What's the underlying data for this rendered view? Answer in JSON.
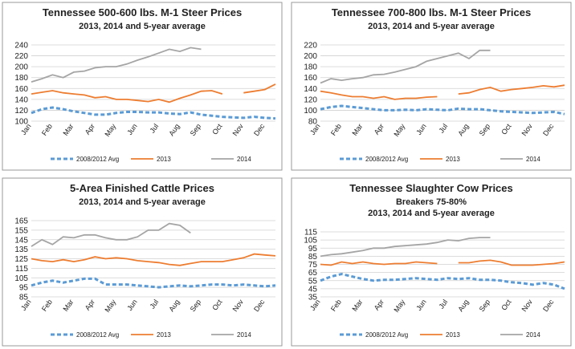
{
  "chart_data": [
    {
      "type": "line",
      "title": "Tennessee 500-600 lbs. M-1 Steer Prices",
      "subtitles": [
        "2013, 2014 and 5-year average"
      ],
      "categories": [
        "Jan",
        null,
        "Feb",
        null,
        "Mar",
        null,
        "Apr",
        null,
        "May",
        null,
        "Jun",
        null,
        "Jul",
        null,
        "Aug",
        null,
        "Sep",
        null,
        "Oct",
        null,
        "Nov",
        null,
        "Dec",
        null
      ],
      "ylim": [
        100,
        240
      ],
      "yticks": [
        100,
        120,
        140,
        160,
        180,
        200,
        220,
        240
      ],
      "grid": true,
      "series": [
        {
          "name": "2008/2012 Avg",
          "color": "#5b9bd5",
          "dashed": true,
          "values": [
            115,
            122,
            125,
            122,
            118,
            115,
            112,
            112,
            115,
            117,
            117,
            116,
            116,
            114,
            113,
            116,
            112,
            110,
            108,
            107,
            106,
            108,
            106,
            105
          ]
        },
        {
          "name": "2013",
          "color": "#ed7d31",
          "values": [
            150,
            153,
            156,
            152,
            150,
            148,
            143,
            145,
            140,
            140,
            138,
            136,
            140,
            135,
            142,
            148,
            155,
            156,
            150,
            null,
            152,
            155,
            158,
            168
          ]
        },
        {
          "name": "2014",
          "color": "#a5a5a5",
          "values": [
            172,
            178,
            185,
            180,
            190,
            192,
            198,
            200,
            200,
            205,
            212,
            218,
            225,
            232,
            228,
            235,
            232,
            null,
            null,
            null,
            null,
            null,
            null,
            null
          ]
        }
      ]
    },
    {
      "type": "line",
      "title": "Tennessee 700-800 lbs. M-1 Steer Prices",
      "subtitles": [
        "2013, 2014 and 5-year average"
      ],
      "categories": [
        "Jan",
        null,
        "Feb",
        null,
        "Mar",
        null,
        "Apr",
        null,
        "May",
        null,
        "Jun",
        null,
        "Jul",
        null,
        "Aug",
        null,
        "Sep",
        null,
        "Oct",
        null,
        "Nov",
        null,
        "Dec",
        null
      ],
      "ylim": [
        80,
        220
      ],
      "yticks": [
        80,
        100,
        120,
        140,
        160,
        180,
        200,
        220
      ],
      "grid": true,
      "series": [
        {
          "name": "2008/2012 Avg",
          "color": "#5b9bd5",
          "dashed": true,
          "values": [
            102,
            106,
            108,
            106,
            104,
            102,
            100,
            100,
            101,
            100,
            102,
            101,
            100,
            103,
            102,
            102,
            100,
            98,
            97,
            96,
            95,
            96,
            97,
            93
          ]
        },
        {
          "name": "2013",
          "color": "#ed7d31",
          "values": [
            135,
            132,
            128,
            125,
            125,
            122,
            125,
            120,
            122,
            122,
            124,
            125,
            null,
            130,
            132,
            138,
            142,
            135,
            138,
            140,
            142,
            145,
            143,
            146
          ]
        },
        {
          "name": "2014",
          "color": "#a5a5a5",
          "values": [
            150,
            158,
            155,
            158,
            160,
            165,
            166,
            170,
            175,
            180,
            190,
            195,
            200,
            205,
            195,
            210,
            210,
            null,
            null,
            null,
            null,
            null,
            null,
            null
          ]
        }
      ]
    },
    {
      "type": "line",
      "title": "5-Area Finished Cattle Prices",
      "subtitles": [
        "2013, 2014 and 5-year average"
      ],
      "categories": [
        "Jan",
        null,
        "Feb",
        null,
        "Mar",
        null,
        "Apr",
        null,
        "May",
        null,
        "Jun",
        null,
        "Jul",
        null,
        "Aug",
        null,
        "Sep",
        null,
        "Oct",
        null,
        "Nov",
        null,
        "Dec",
        null
      ],
      "ylim": [
        85,
        165
      ],
      "yticks": [
        85,
        95,
        105,
        115,
        125,
        135,
        145,
        155,
        165
      ],
      "grid": true,
      "series": [
        {
          "name": "2008/2012 Avg",
          "color": "#5b9bd5",
          "dashed": true,
          "values": [
            97,
            100,
            102,
            100,
            102,
            104,
            104,
            98,
            98,
            98,
            97,
            96,
            95,
            96,
            97,
            96,
            97,
            98,
            98,
            97,
            98,
            97,
            96,
            97
          ]
        },
        {
          "name": "2013",
          "color": "#ed7d31",
          "values": [
            125,
            123,
            122,
            124,
            122,
            124,
            127,
            125,
            126,
            125,
            123,
            122,
            121,
            119,
            118,
            120,
            122,
            122,
            122,
            124,
            126,
            130,
            129,
            128
          ]
        },
        {
          "name": "2014",
          "color": "#a5a5a5",
          "values": [
            138,
            145,
            140,
            148,
            147,
            150,
            150,
            147,
            145,
            145,
            148,
            155,
            155,
            162,
            160,
            152,
            null,
            null,
            null,
            null,
            null,
            null,
            null,
            null
          ]
        }
      ]
    },
    {
      "type": "line",
      "title": "Tennessee Slaughter Cow Prices",
      "subtitles": [
        "Breakers 75-80%",
        "2013, 2014 and 5-year average"
      ],
      "categories": [
        "Jan",
        null,
        "Feb",
        null,
        "Mar",
        null,
        "Apr",
        null,
        "May",
        null,
        "Jun",
        null,
        "Jul",
        null,
        "Aug",
        null,
        "Sep",
        null,
        "Oct",
        null,
        "Nov",
        null,
        "Dec",
        null
      ],
      "ylim": [
        35,
        115
      ],
      "yticks": [
        35,
        45,
        55,
        65,
        75,
        85,
        95,
        105,
        115
      ],
      "grid": true,
      "series": [
        {
          "name": "2008/2012 Avg",
          "color": "#5b9bd5",
          "dashed": true,
          "values": [
            55,
            60,
            63,
            60,
            57,
            55,
            56,
            56,
            57,
            58,
            57,
            56,
            58,
            57,
            58,
            56,
            56,
            55,
            53,
            52,
            50,
            52,
            50,
            45
          ]
        },
        {
          "name": "2013",
          "color": "#ed7d31",
          "values": [
            75,
            74,
            78,
            76,
            78,
            76,
            75,
            76,
            76,
            78,
            77,
            76,
            null,
            77,
            77,
            79,
            80,
            78,
            74,
            74,
            74,
            75,
            76,
            78
          ]
        },
        {
          "name": "2014",
          "color": "#a5a5a5",
          "values": [
            85,
            87,
            88,
            90,
            92,
            95,
            95,
            97,
            98,
            99,
            100,
            102,
            105,
            104,
            107,
            108,
            108,
            null,
            null,
            null,
            null,
            null,
            null,
            null
          ]
        }
      ]
    }
  ]
}
